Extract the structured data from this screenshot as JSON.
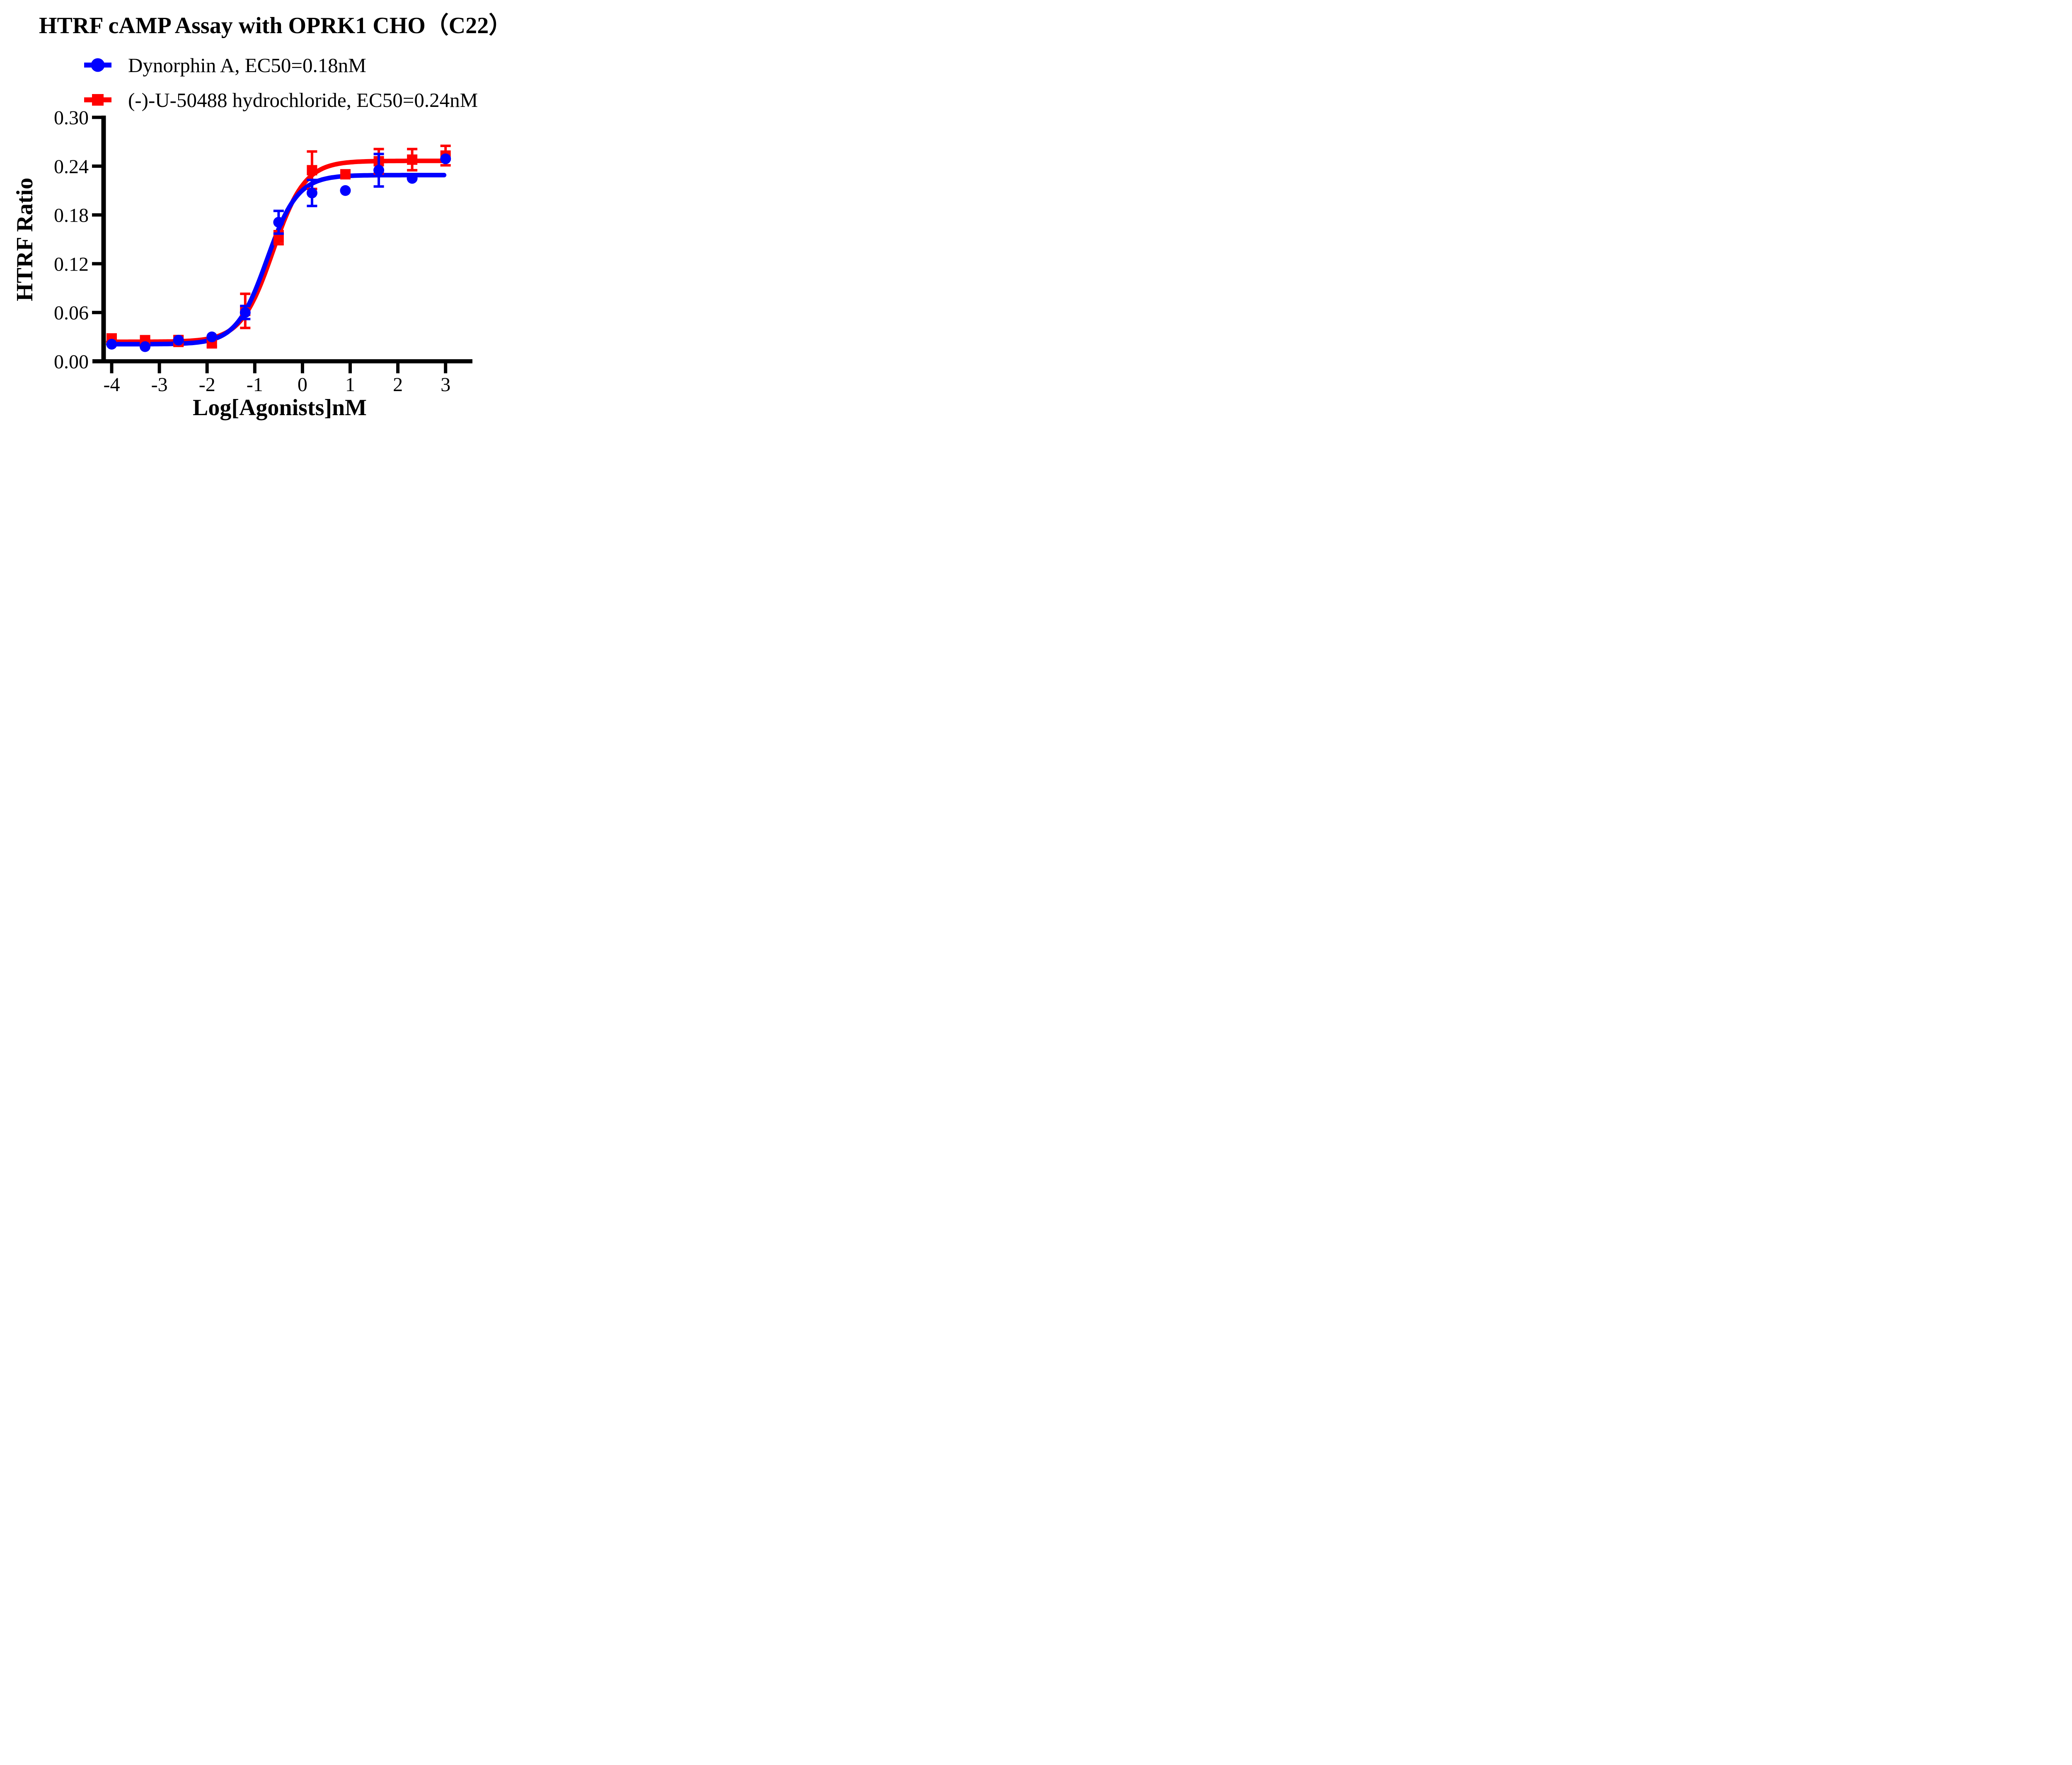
{
  "chart_data": {
    "type": "line",
    "title": "HTRF cAMP Assay with OPRK1 CHO（C22）",
    "xlabel": "Log[Agonists]nM",
    "ylabel": "HTRF Ratio",
    "xlim": [
      -4.65,
      3.55
    ],
    "ylim": [
      0,
      0.3
    ],
    "x_ticks": [
      -4,
      -3,
      -2,
      -1,
      0,
      1,
      2,
      3
    ],
    "x_tick_labels": [
      "-4",
      "-3",
      "-2",
      "-1",
      "0",
      "1",
      "2",
      "3"
    ],
    "y_ticks": [
      0,
      0.06,
      0.12,
      0.18,
      0.24,
      0.3
    ],
    "y_tick_labels": [
      "0.00",
      "0.06",
      "0.12",
      "0.18",
      "0.24",
      "0.30"
    ],
    "grid": false,
    "legend_position": "top-left",
    "axis_color": "#000000",
    "legend": [
      {
        "label": "Dynorphin A,  EC50=0.18nM",
        "marker": "circle",
        "color": "#0000ff"
      },
      {
        "label": "(-)-U-50488 hydrochloride,  EC50=0.24nM",
        "marker": "square",
        "color": "#ff0000"
      }
    ],
    "series": [
      {
        "name": "(-)-U-50488 hydrochloride",
        "ec50_label": "EC50=0.24nM",
        "color": "#ff0000",
        "marker": "square",
        "x": [
          -4,
          -3.3,
          -2.6,
          -1.9,
          -1.2,
          -0.5,
          0.2,
          0.9,
          1.6,
          2.3,
          3.0
        ],
        "y": [
          0.027,
          0.026,
          0.025,
          0.022,
          0.062,
          0.152,
          0.235,
          0.23,
          0.246,
          0.248,
          0.253
        ],
        "yerr": [
          0.006,
          0.003,
          0.006,
          0.004,
          0.021,
          0.008,
          0.023,
          0,
          0.015,
          0.013,
          0.012
        ],
        "fit": {
          "bottom": 0.024,
          "top": 0.2465,
          "logec50": -0.62,
          "hill": 1.3,
          "x_start": -4.07,
          "x_end": 3.02
        }
      },
      {
        "name": "Dynorphin A",
        "ec50_label": "EC50=0.18nM",
        "color": "#0000ff",
        "marker": "circle",
        "x": [
          -4,
          -3.3,
          -2.6,
          -1.9,
          -1.2,
          -0.5,
          0.2,
          0.9,
          1.6,
          2.3,
          3.0
        ],
        "y": [
          0.021,
          0.018,
          0.026,
          0.03,
          0.06,
          0.171,
          0.207,
          0.21,
          0.235,
          0.225,
          0.249
        ],
        "yerr": [
          0,
          0,
          0,
          0,
          0.008,
          0.014,
          0.016,
          0,
          0.02,
          0,
          0
        ],
        "fit": {
          "bottom": 0.021,
          "top": 0.229,
          "logec50": -0.745,
          "hill": 1.35,
          "x_start": -4.07,
          "x_end": 2.97
        }
      }
    ]
  }
}
